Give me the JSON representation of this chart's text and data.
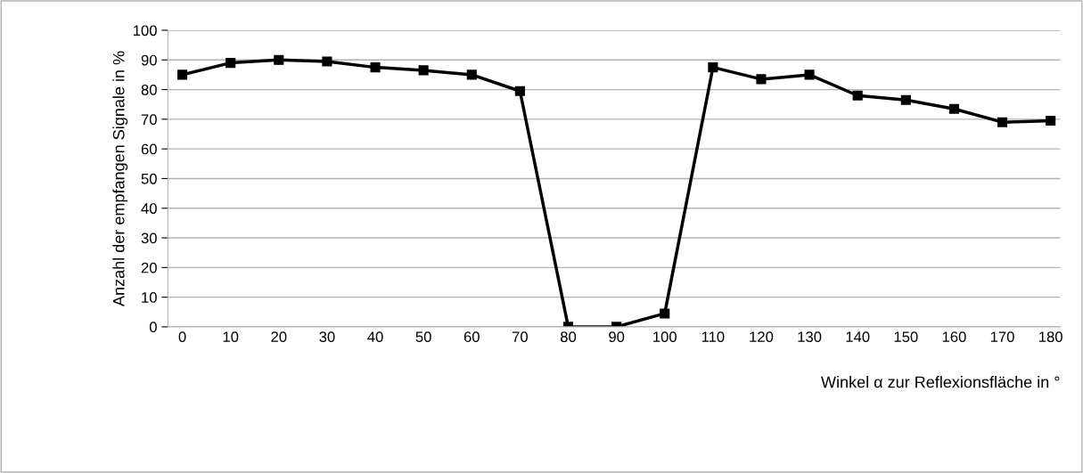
{
  "chart_data": {
    "type": "line",
    "xlabel": "Winkel α zur Reflexionsfläche in °",
    "ylabel": "Anzahl der empfangen Signale in %",
    "categories": [
      "0",
      "10",
      "20",
      "30",
      "40",
      "50",
      "60",
      "70",
      "80",
      "90",
      "100",
      "110",
      "120",
      "130",
      "140",
      "150",
      "160",
      "170",
      "180"
    ],
    "series": [
      {
        "color": "#000000",
        "values": [
          85,
          89,
          90,
          89.5,
          87.5,
          86.5,
          85,
          79.5,
          0,
          0,
          4.5,
          87.5,
          83.5,
          85,
          78,
          76.5,
          73.5,
          69,
          69.5
        ]
      }
    ],
    "ylim": [
      0,
      100
    ],
    "yticks": [
      0,
      10,
      20,
      30,
      40,
      50,
      60,
      70,
      80,
      90,
      100
    ],
    "grid": "y",
    "marker": "square",
    "line_style": "solid"
  }
}
